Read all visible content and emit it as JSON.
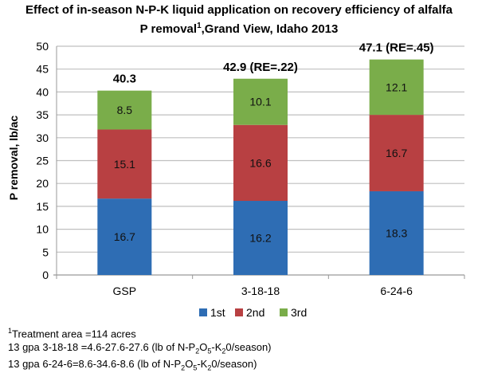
{
  "chart_data": {
    "type": "bar",
    "stacked": true,
    "title": "Effect of in-season N-P-K liquid application on recovery efficiency of alfalfa",
    "title_line2_prefix": "P removal",
    "title_line2_sup": "1",
    "title_line2_suffix": ",Grand View, Idaho 2013",
    "xlabel": "",
    "ylabel": "P removal, lb/ac",
    "ylim": [
      0,
      50
    ],
    "yticks": [
      "0",
      "5",
      "10",
      "15",
      "20",
      "25",
      "30",
      "35",
      "40",
      "45",
      "50"
    ],
    "grid": true,
    "categories": [
      "GSP",
      "3-18-18",
      "6-24-6"
    ],
    "series": [
      {
        "name": "1st",
        "color": "#2e6db4",
        "values": [
          16.7,
          16.2,
          18.3
        ],
        "labels": [
          "16.7",
          "16.2",
          "18.3"
        ]
      },
      {
        "name": "2nd",
        "color": "#b84042",
        "values": [
          15.1,
          16.6,
          16.7
        ],
        "labels": [
          "15.1",
          "16.6",
          "16.7"
        ]
      },
      {
        "name": "3rd",
        "color": "#7aad4a",
        "values": [
          8.5,
          10.1,
          12.1
        ],
        "labels": [
          "8.5",
          "10.1",
          "12.1"
        ]
      }
    ],
    "totals": [
      40.3,
      42.9,
      47.1
    ],
    "total_labels": [
      "40.3",
      "42.9 (RE=.22)",
      "47.1 (RE=.45)"
    ],
    "legend_position": "bottom"
  },
  "footnotes": {
    "line1_sup": "1",
    "line1": "Treatment area =114 acres",
    "line2_a": "13 gpa 3-18-18 =4.6-27.6-27.6 (lb of N-P",
    "line3_a": "13 gpa 6-24-6=8.6-34.6-8.6  (lb of N-P",
    "sub_2": "2",
    "mid_O": "O",
    "sub_5": "5",
    "mid_K": "-K",
    "tail": "0/season)"
  }
}
